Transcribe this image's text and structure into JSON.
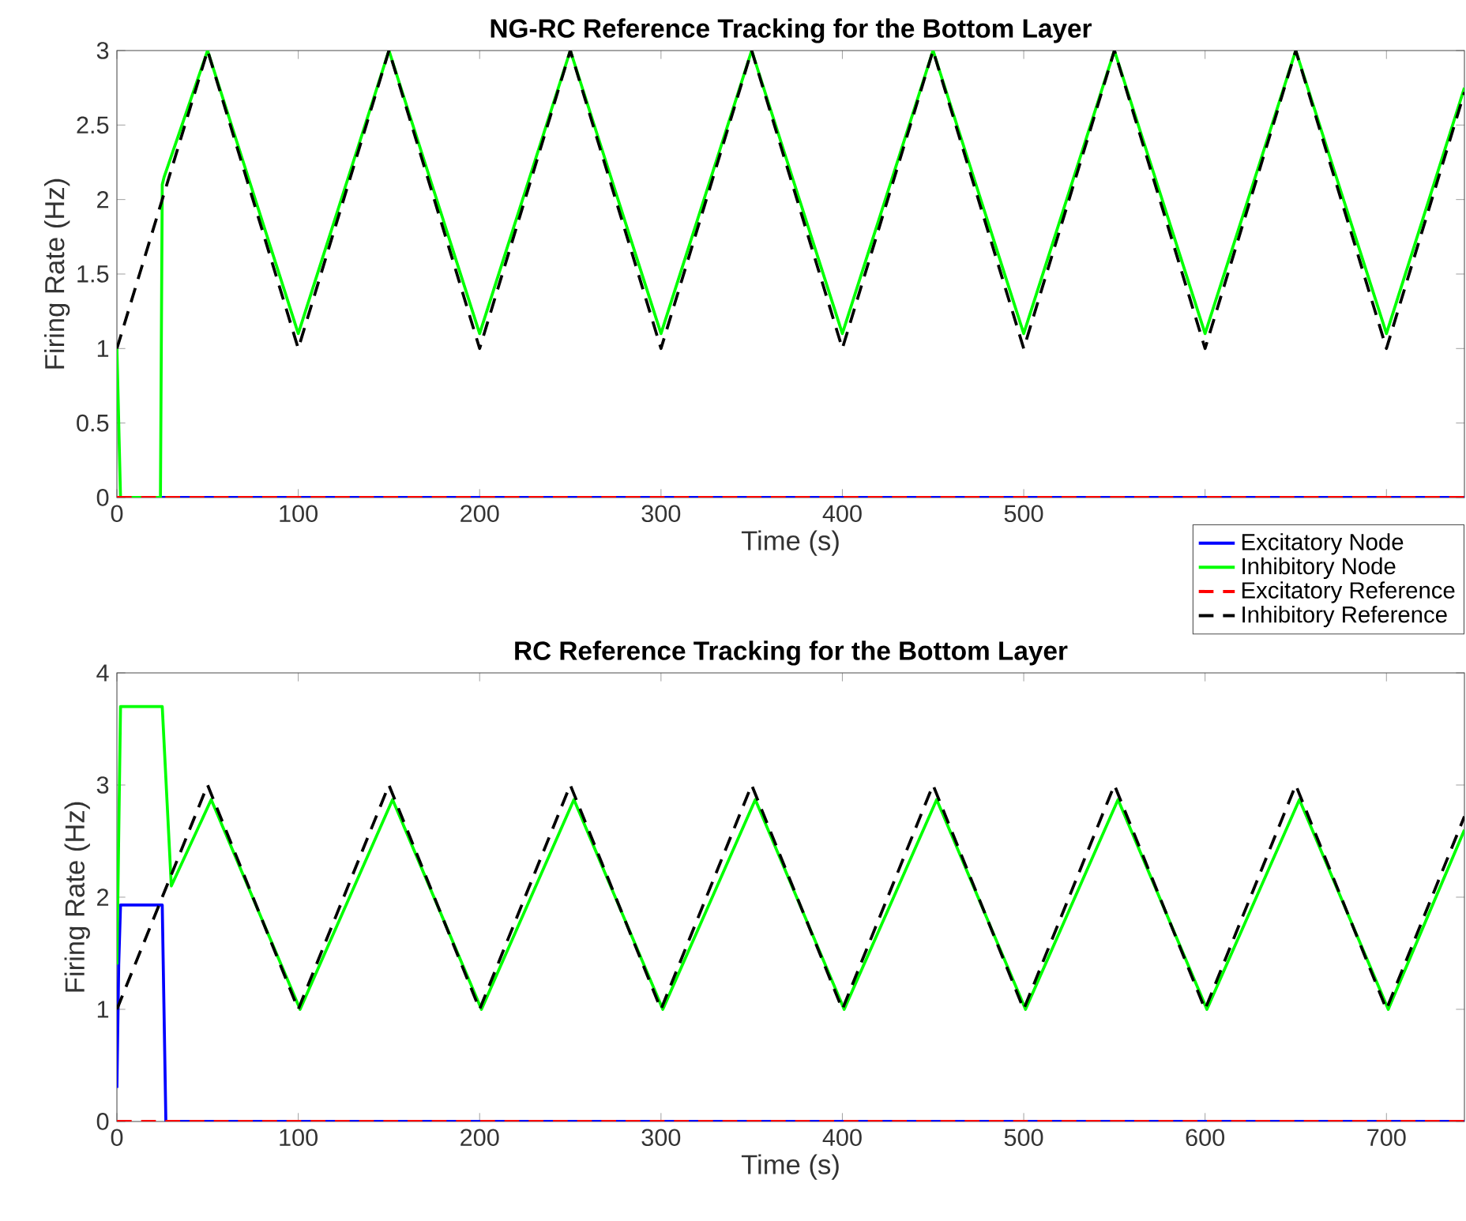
{
  "chart_data": [
    {
      "type": "line",
      "title": "NG-RC Reference Tracking for the Bottom Layer",
      "xlabel": "Time (s)",
      "ylabel": "Firing Rate (Hz)",
      "xlim": [
        0,
        743
      ],
      "ylim": [
        0,
        3
      ],
      "xticks": [
        0,
        100,
        200,
        300,
        400,
        500,
        {
          "value": 600,
          "label": null
        },
        {
          "value": 700,
          "label": null
        }
      ],
      "yticks": [
        0,
        0.5,
        1,
        1.5,
        2,
        2.5,
        3
      ],
      "grid": false,
      "legend": "bottom right",
      "series": [
        {
          "name": "Excitatory Node",
          "color": "#0000ff",
          "line_style": "solid",
          "x": [
            0,
            743
          ],
          "values": [
            0,
            0
          ]
        },
        {
          "name": "Inhibitory Node",
          "color": "#00ff00",
          "line_style": "solid",
          "x": [
            0,
            2,
            24,
            25,
            26,
            50,
            100,
            150,
            200,
            250,
            300,
            350,
            400,
            450,
            500,
            550,
            600,
            650,
            700,
            743
          ],
          "values": [
            1,
            0,
            0,
            2.1,
            2.15,
            3,
            1.1,
            3,
            1.1,
            3,
            1.1,
            3,
            1.1,
            3,
            1.1,
            3,
            1.1,
            3,
            1.1,
            2.75
          ]
        },
        {
          "name": "Excitatory Reference",
          "color": "#ff0000",
          "line_style": "dashed",
          "x": [
            0,
            743
          ],
          "values": [
            0,
            0
          ]
        },
        {
          "name": "Inhibitory Reference",
          "color": "#000000",
          "line_style": "dashed",
          "x": [
            0,
            50,
            100,
            150,
            200,
            250,
            300,
            350,
            400,
            450,
            500,
            550,
            600,
            650,
            700,
            743
          ],
          "values": [
            1,
            3,
            1,
            3,
            1,
            3,
            1,
            3,
            1,
            3,
            1,
            3,
            1,
            3,
            1,
            2.72
          ]
        }
      ]
    },
    {
      "type": "line",
      "title": "RC Reference Tracking for the Bottom Layer",
      "xlabel": "Time (s)",
      "ylabel": "Firing Rate (Hz)",
      "xlim": [
        0,
        743
      ],
      "ylim": [
        0,
        4
      ],
      "xticks": [
        0,
        100,
        200,
        300,
        400,
        500,
        600,
        700
      ],
      "yticks": [
        0,
        1,
        2,
        3,
        4
      ],
      "grid": false,
      "series": [
        {
          "color": "#0000ff",
          "line_style": "solid",
          "x": [
            0,
            1,
            2,
            25,
            27,
            743
          ],
          "values": [
            0.3,
            1.4,
            1.93,
            1.93,
            0,
            0
          ]
        },
        {
          "color": "#00ff00",
          "line_style": "solid",
          "x": [
            0,
            2,
            25,
            30,
            52,
            101,
            152,
            201,
            252,
            301,
            352,
            401,
            452,
            501,
            552,
            601,
            652,
            701,
            743
          ],
          "values": [
            1.4,
            3.7,
            3.7,
            2.1,
            2.87,
            1.0,
            2.87,
            1.0,
            2.87,
            1.0,
            2.87,
            1.0,
            2.87,
            1.0,
            2.87,
            1.0,
            2.87,
            1.0,
            2.6
          ]
        },
        {
          "color": "#ff0000",
          "line_style": "dashed",
          "x": [
            0,
            743
          ],
          "values": [
            0,
            0
          ]
        },
        {
          "color": "#000000",
          "line_style": "dashed",
          "x": [
            0,
            50,
            100,
            150,
            200,
            250,
            300,
            350,
            400,
            450,
            500,
            550,
            600,
            650,
            700,
            743
          ],
          "values": [
            1,
            3,
            1,
            3,
            1,
            3,
            1,
            3,
            1,
            3,
            1,
            3,
            1,
            3,
            1,
            2.72
          ]
        }
      ]
    }
  ]
}
